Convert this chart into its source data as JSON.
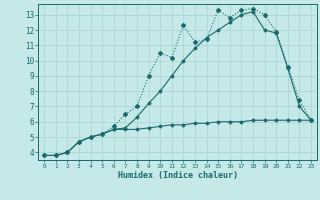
{
  "xlabel": "Humidex (Indice chaleur)",
  "bg_color": "#c5e8e8",
  "grid_color": "#afd4d4",
  "line_color": "#1a6b6b",
  "xlim": [
    -0.5,
    23.5
  ],
  "ylim": [
    3.5,
    13.7
  ],
  "xticks": [
    0,
    1,
    2,
    3,
    4,
    5,
    6,
    7,
    8,
    9,
    10,
    11,
    12,
    13,
    14,
    15,
    16,
    17,
    18,
    19,
    20,
    21,
    22,
    23
  ],
  "yticks": [
    4,
    5,
    6,
    7,
    8,
    9,
    10,
    11,
    12,
    13
  ],
  "series1_x": [
    0,
    1,
    2,
    3,
    4,
    5,
    6,
    7,
    8,
    9,
    10,
    11,
    12,
    13,
    14,
    15,
    16,
    17,
    18,
    19,
    20,
    21,
    22,
    23
  ],
  "series1_y": [
    3.8,
    3.8,
    4.0,
    4.7,
    5.0,
    5.2,
    5.5,
    5.5,
    5.5,
    5.6,
    5.7,
    5.8,
    5.8,
    5.9,
    5.9,
    6.0,
    6.0,
    6.0,
    6.1,
    6.1,
    6.1,
    6.1,
    6.1,
    6.1
  ],
  "series2_x": [
    0,
    1,
    2,
    3,
    4,
    5,
    6,
    7,
    8,
    9,
    10,
    11,
    12,
    13,
    14,
    15,
    16,
    17,
    18,
    19,
    20,
    21,
    22,
    23
  ],
  "series2_y": [
    3.8,
    3.8,
    4.0,
    4.7,
    5.0,
    5.2,
    5.7,
    6.5,
    7.0,
    9.0,
    10.5,
    10.2,
    12.3,
    11.2,
    11.4,
    13.3,
    12.8,
    13.3,
    13.4,
    13.0,
    11.9,
    9.6,
    7.4,
    6.1
  ],
  "series3_x": [
    0,
    1,
    2,
    3,
    4,
    5,
    6,
    7,
    8,
    9,
    10,
    11,
    12,
    13,
    14,
    15,
    16,
    17,
    18,
    19,
    20,
    21,
    22,
    23
  ],
  "series3_y": [
    3.8,
    3.8,
    4.0,
    4.7,
    5.0,
    5.2,
    5.5,
    5.6,
    6.3,
    7.2,
    8.0,
    9.0,
    10.0,
    10.8,
    11.5,
    12.0,
    12.5,
    13.0,
    13.2,
    12.0,
    11.8,
    9.5,
    7.0,
    6.1
  ]
}
